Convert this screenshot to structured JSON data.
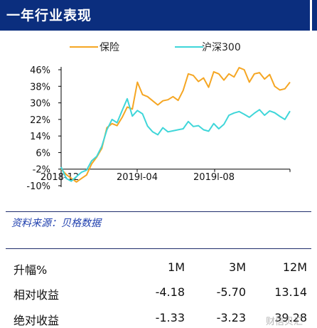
{
  "header": {
    "title": "一年行业表现"
  },
  "chart_data": {
    "type": "line",
    "ylim": [
      -10,
      46
    ],
    "yticks": [
      "46%",
      "38%",
      "30%",
      "22%",
      "14%",
      "6%",
      "-2%",
      "-10%"
    ],
    "ytick_values": [
      46,
      38,
      30,
      22,
      14,
      6,
      -2,
      -10
    ],
    "xtick_labels": [
      "2018-12",
      "2019-04",
      "2019-08"
    ],
    "xtick_labels_display": [
      "2018-12",
      "2019l-04",
      "2019l-08"
    ],
    "legend": "top",
    "colors": {
      "保险": "#f5a623",
      "沪深300": "#3fd6d9"
    },
    "series": [
      {
        "name": "保险",
        "values": [
          -2.0,
          -4.6,
          -6.4,
          -8.2,
          -6.5,
          -4.8,
          0.5,
          3.8,
          8.0,
          18.0,
          20.0,
          19.0,
          23.0,
          28.0,
          27.0,
          40.0,
          34.0,
          33.0,
          31.0,
          29.0,
          31.0,
          31.5,
          33.0,
          31.2,
          36.0,
          44.0,
          43.2,
          40.3,
          42.0,
          37.5,
          45.0,
          44.0,
          41.0,
          44.0,
          42.5,
          47.0,
          46.0,
          40.0,
          44.0,
          44.6,
          41.5,
          43.7,
          38.0,
          36.2,
          36.8,
          40.0
        ]
      },
      {
        "name": "沪深300",
        "values": [
          -1.0,
          -6.5,
          -7.8,
          -5.6,
          -3.5,
          -2.5,
          2.0,
          4.2,
          9.0,
          17.0,
          22.0,
          20.4,
          26.3,
          32.0,
          23.6,
          26.3,
          24.7,
          18.8,
          16.0,
          14.6,
          18.0,
          16.0,
          16.5,
          17.0,
          17.5,
          21.0,
          18.6,
          19.0,
          17.0,
          16.3,
          20.0,
          17.5,
          19.6,
          24.0,
          25.1,
          25.8,
          24.5,
          23.0,
          25.0,
          26.7,
          24.0,
          26.1,
          25.2,
          23.5,
          22.0,
          26.0
        ]
      }
    ]
  },
  "source": "资料来源：贝格数据",
  "table": {
    "headers": [
      "升幅%",
      "1M",
      "3M",
      "12M"
    ],
    "rows": [
      [
        "相对收益",
        "-4.18",
        "-5.70",
        "13.14"
      ],
      [
        "绝对收益",
        "-1.33",
        "-3.23",
        "39.28"
      ]
    ]
  },
  "watermark": "财信贝汇"
}
